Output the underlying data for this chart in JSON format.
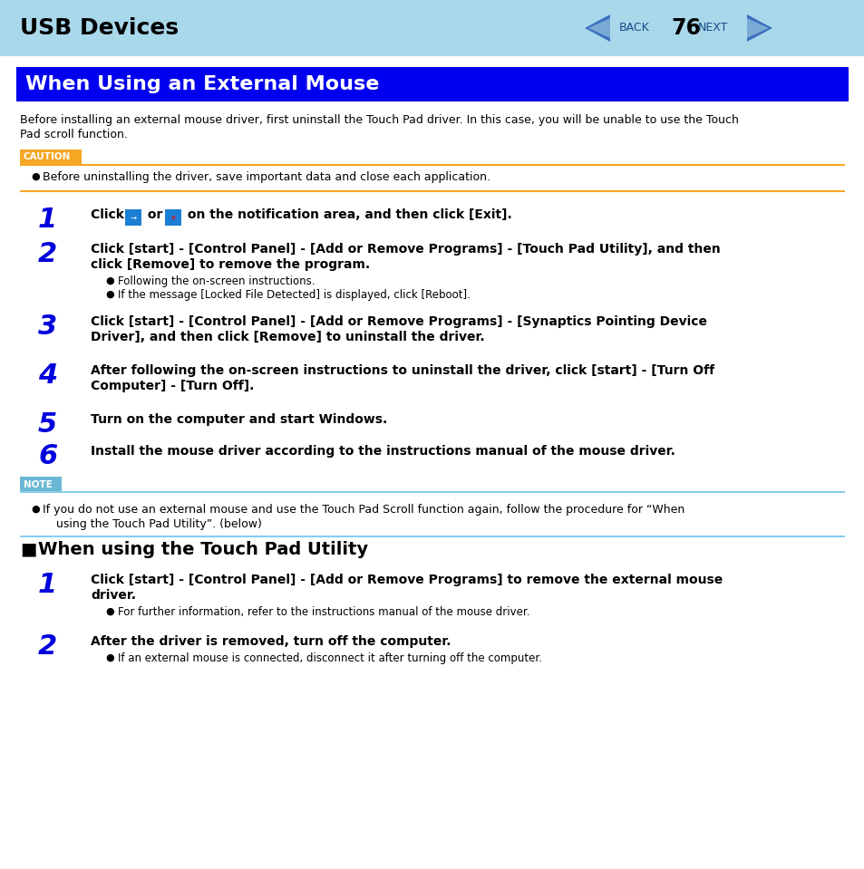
{
  "bg_color": "#ffffff",
  "header_bg": "#a8d8ea",
  "header_title": "USB Devices",
  "section_title": "When Using an External Mouse",
  "section_title_bg": "#0000ee",
  "section_title_color": "#ffffff",
  "caution_label": "CAUTION",
  "caution_color": "#f5a623",
  "note_label": "NOTE",
  "note_color": "#6bb8d4",
  "note_text_color": "#87ceeb",
  "intro_line1": "Before installing an external mouse driver, first uninstall the Touch Pad driver. In this case, you will be unable to use the Touch",
  "intro_line2": "Pad scroll function.",
  "caution_text": "Before uninstalling the driver, save important data and close each application.",
  "step1_text": "Click      or      on the notification area, and then click [Exit].",
  "step2_line1": "Click [start] - [Control Panel] - [Add or Remove Programs] - [Touch Pad Utility], and then",
  "step2_line2": "click [Remove] to remove the program.",
  "step2_sub1": "Following the on-screen instructions.",
  "step2_sub2": "If the message [Locked File Detected] is displayed, click [Reboot].",
  "step3_line1": "Click [start] - [Control Panel] - [Add or Remove Programs] - [Synaptics Pointing Device",
  "step3_line2": "Driver], and then click [Remove] to uninstall the driver.",
  "step4_line1": "After following the on-screen instructions to uninstall the driver, click [start] - [Turn Off",
  "step4_line2": "Computer] - [Turn Off].",
  "step5_text": "Turn on the computer and start Windows.",
  "step6_text": "Install the mouse driver according to the instructions manual of the mouse driver.",
  "note_line1": "If you do not use an external mouse and use the Touch Pad Scroll function again, follow the procedure for “When",
  "note_line2": "using the Touch Pad Utility”. (below)",
  "sec2_title": "When using the Touch Pad Utility",
  "s2_step1_line1": "Click [start] - [Control Panel] - [Add or Remove Programs] to remove the external mouse",
  "s2_step1_line2": "driver.",
  "s2_step1_sub": "For further information, refer to the instructions manual of the mouse driver.",
  "s2_step2_text": "After the driver is removed, turn off the computer.",
  "s2_step2_sub": "If an external mouse is connected, disconnect it after turning off the computer.",
  "page_num": "76",
  "back_text": "BACK",
  "next_text": "NEXT"
}
